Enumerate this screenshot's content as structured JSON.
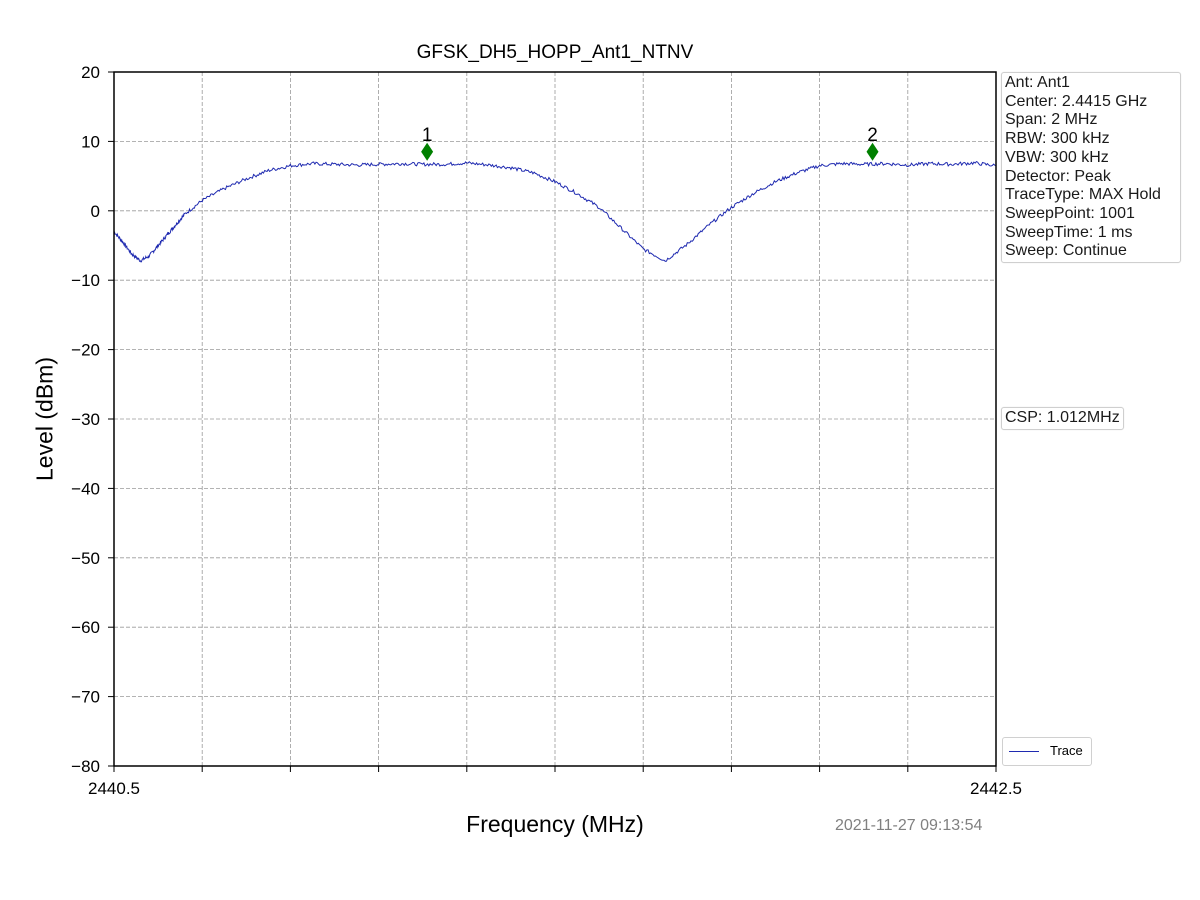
{
  "chart_data": {
    "type": "line",
    "title": "GFSK_DH5_HOPP_Ant1_NTNV",
    "xlabel": "Frequency (MHz)",
    "ylabel": "Level (dBm)",
    "xlim": [
      2440.5,
      2442.5
    ],
    "ylim": [
      -80,
      20
    ],
    "x_tick_labels": [
      "2440.5",
      "2442.5"
    ],
    "y_ticks": [
      20,
      10,
      0,
      -10,
      -20,
      -30,
      -40,
      -50,
      -60,
      -70,
      -80
    ],
    "x_gridlines": 10,
    "grid": true,
    "legend": {
      "position": "bottom-right",
      "entries": [
        "Trace"
      ]
    },
    "series": [
      {
        "name": "Trace",
        "color": "#1f2ab0",
        "x": [
          2440.5,
          2440.52,
          2440.54,
          2440.56,
          2440.58,
          2440.6,
          2440.62,
          2440.64,
          2440.66,
          2440.7,
          2440.75,
          2440.8,
          2440.85,
          2440.9,
          2440.95,
          2441.0,
          2441.05,
          2441.1,
          2441.15,
          2441.2,
          2441.25,
          2441.3,
          2441.35,
          2441.4,
          2441.45,
          2441.5,
          2441.55,
          2441.6,
          2441.65,
          2441.7,
          2441.75,
          2441.8,
          2441.85,
          2441.9,
          2441.95,
          2442.0,
          2442.05,
          2442.1,
          2442.15,
          2442.2,
          2442.25,
          2442.3,
          2442.35,
          2442.4,
          2442.45,
          2442.5
        ],
        "y": [
          -3,
          -4.5,
          -6.2,
          -7.2,
          -6.5,
          -5.0,
          -3.5,
          -2.0,
          -0.5,
          1.5,
          3.2,
          4.6,
          5.8,
          6.5,
          6.8,
          6.7,
          6.6,
          6.7,
          6.8,
          6.7,
          6.7,
          6.9,
          6.6,
          6.2,
          5.5,
          4.2,
          2.5,
          0.5,
          -2.5,
          -5.5,
          -7.2,
          -4.8,
          -2.0,
          0.5,
          2.5,
          4.2,
          5.5,
          6.5,
          6.8,
          6.7,
          6.8,
          6.6,
          6.8,
          6.7,
          6.9,
          6.5
        ]
      }
    ],
    "markers": [
      {
        "label": "1",
        "x": 2441.21,
        "y": 8.5,
        "color": "#008000"
      },
      {
        "label": "2",
        "x": 2442.22,
        "y": 8.5,
        "color": "#008000"
      }
    ]
  },
  "info_box": [
    "Ant: Ant1",
    "Center: 2.4415 GHz",
    "Span: 2 MHz",
    "RBW: 300 kHz",
    "VBW: 300 kHz",
    "Detector: Peak",
    "TraceType: MAX Hold",
    "SweepPoint: 1001",
    "SweepTime: 1 ms",
    "Sweep: Continue"
  ],
  "csp_box": "CSP: 1.012MHz",
  "timestamp": "2021-11-27 09:13:54"
}
